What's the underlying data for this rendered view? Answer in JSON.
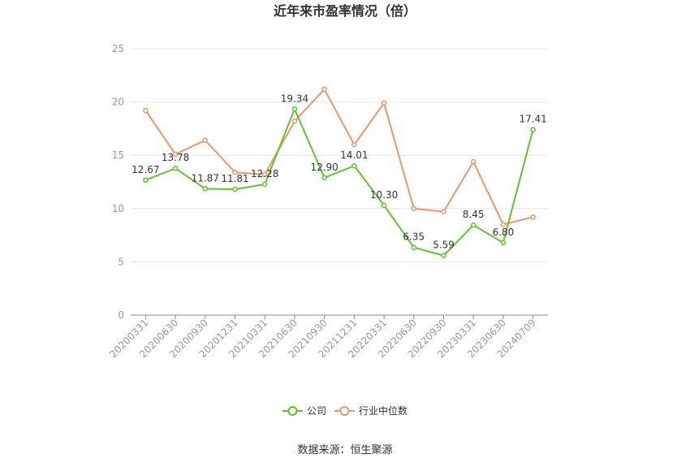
{
  "chart_data": {
    "type": "line",
    "title": "近年来市盈率情况（倍）",
    "xlabel": "",
    "ylabel": "",
    "ylim": [
      0,
      25
    ],
    "yticks": [
      0,
      5,
      10,
      15,
      20,
      25
    ],
    "grid": true,
    "legend_position": "bottom",
    "categories": [
      "20200331",
      "20200630",
      "20200930",
      "20201231",
      "20210331",
      "20210630",
      "20210930",
      "20211231",
      "20220331",
      "20220630",
      "20220930",
      "20230331",
      "20230630",
      "20240709"
    ],
    "series": [
      {
        "name": "公司",
        "color": "#5cc52e",
        "values": [
          12.67,
          13.78,
          11.87,
          11.81,
          12.28,
          19.34,
          12.9,
          14.01,
          10.3,
          6.35,
          5.59,
          8.45,
          6.8,
          17.41
        ],
        "labels": [
          "12.67",
          "13.78",
          "11.87",
          "11.81",
          "12.28",
          "19.34",
          "12.90",
          "14.01",
          "10.30",
          "6.35",
          "5.59",
          "8.45",
          "6.80",
          "17.41"
        ]
      },
      {
        "name": "行业中位数",
        "color": "#f0956a",
        "values": [
          19.2,
          15.1,
          16.4,
          13.4,
          13.2,
          18.2,
          21.2,
          16.0,
          19.9,
          10.0,
          9.7,
          14.4,
          8.5,
          9.2
        ]
      }
    ]
  },
  "footer": {
    "source": "数据来源：恒生聚源"
  }
}
